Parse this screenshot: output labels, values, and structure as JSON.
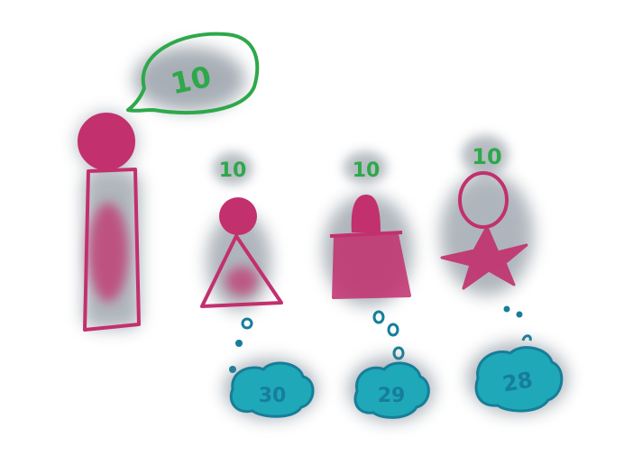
{
  "colors": {
    "figure": "#c2306e",
    "speech": "#2ea84a",
    "thought": "#167e9a",
    "shadow": "#6e7a86"
  },
  "speaker": {
    "speech_text": "10"
  },
  "figures": [
    {
      "shape": "triangle",
      "speech_text": "10",
      "thought_text": "30"
    },
    {
      "shape": "trapezoid",
      "speech_text": "10",
      "thought_text": "29"
    },
    {
      "shape": "star",
      "speech_text": "10",
      "thought_text": "28"
    }
  ]
}
